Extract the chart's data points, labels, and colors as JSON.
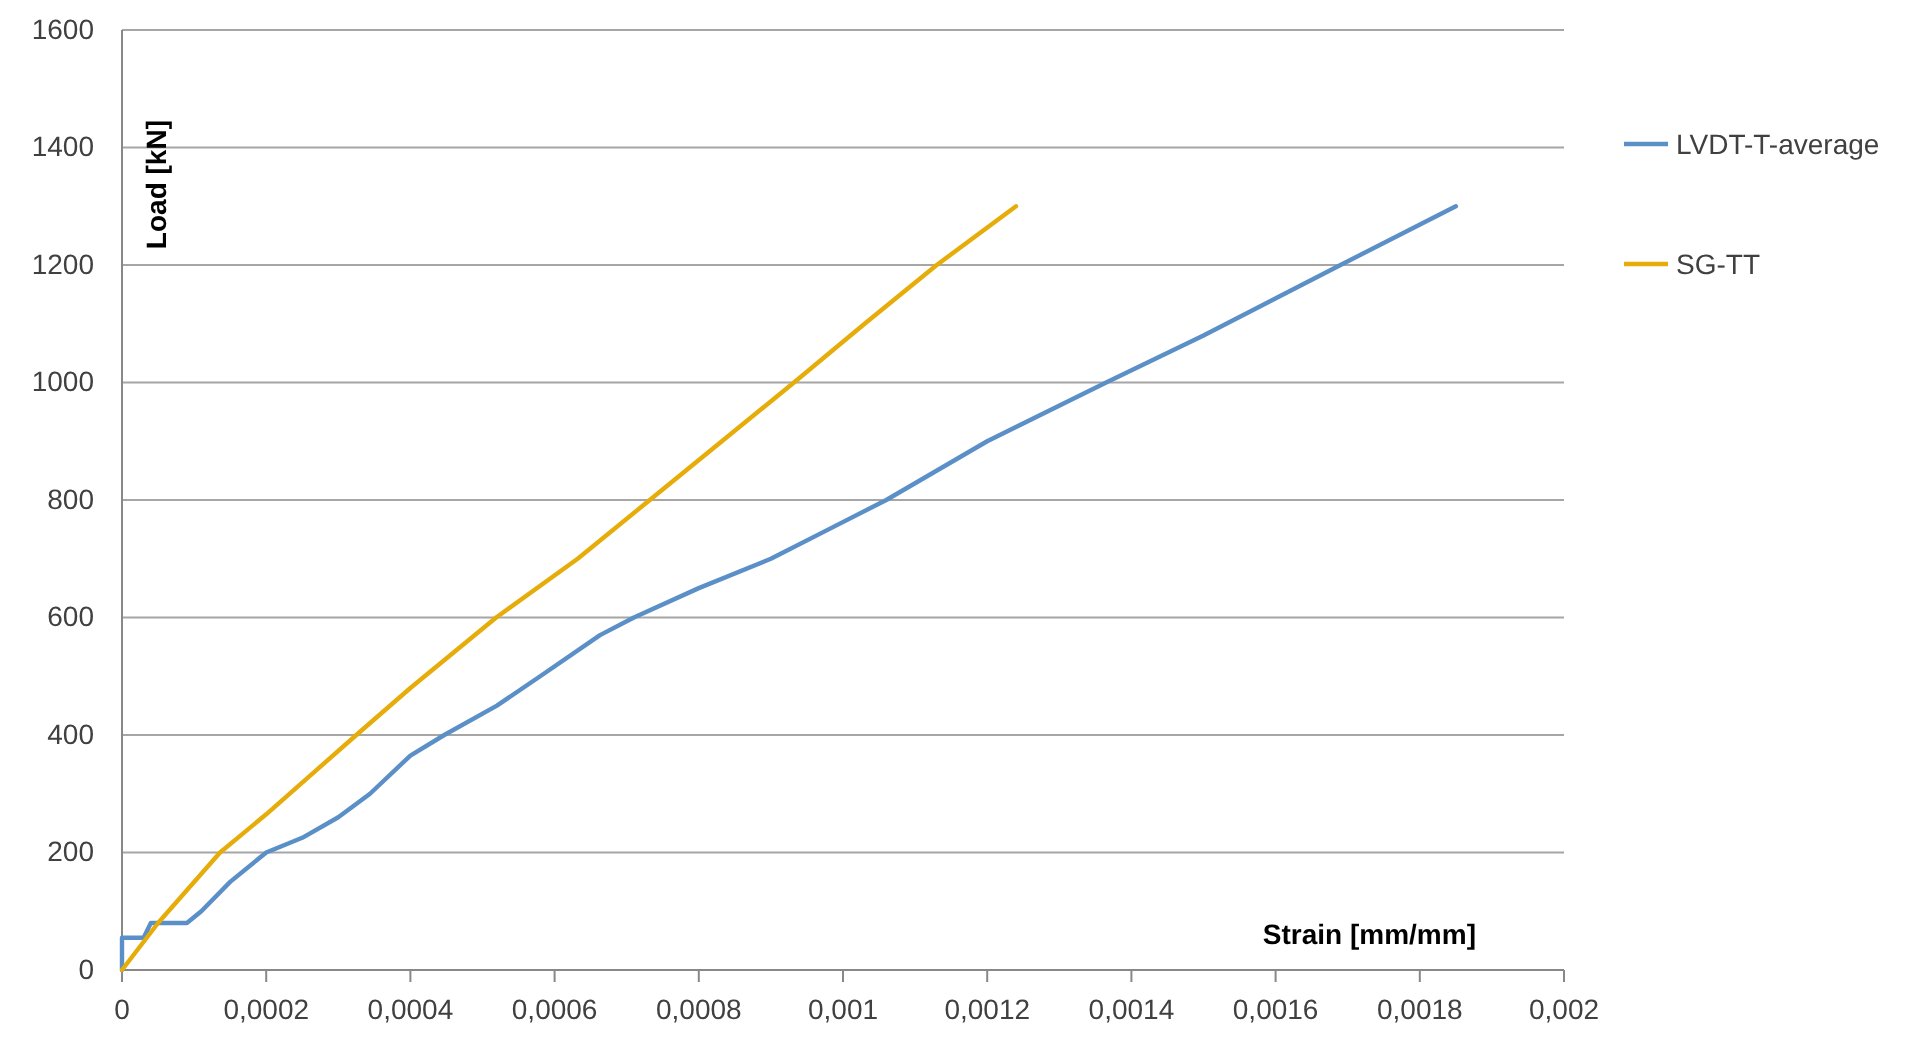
{
  "chart_data": {
    "type": "line",
    "xlabel": "Strain [mm/mm]",
    "ylabel": "Load [kN]",
    "xlim": [
      0,
      0.002
    ],
    "ylim": [
      0,
      1600
    ],
    "xticks": [
      0,
      {
        "value": 0.0002,
        "label": "0,0002"
      },
      {
        "value": 0.0004,
        "label": "0,0004"
      },
      {
        "value": 0.0006,
        "label": "0,0006"
      },
      {
        "value": 0.0008,
        "label": "0,0008"
      },
      {
        "value": 0.001,
        "label": "0,001"
      },
      {
        "value": 0.0012,
        "label": "0,0012"
      },
      {
        "value": 0.0014,
        "label": "0,0014"
      },
      {
        "value": 0.0016,
        "label": "0,0016"
      },
      {
        "value": 0.0018,
        "label": "0,0018"
      },
      {
        "value": 0.002,
        "label": "0,002"
      }
    ],
    "yticks": [
      0,
      200,
      400,
      600,
      800,
      1000,
      1200,
      1400,
      1600
    ],
    "grid": "y",
    "legend": "right",
    "marker": "none",
    "line_style": "solid",
    "series": [
      {
        "name": "LVDT-T-average",
        "color": "#5b8fc7",
        "x": [
          0,
          0,
          3e-05,
          4e-05,
          9e-05,
          0.00011,
          0.00015,
          0.0002,
          0.00025,
          0.0003,
          0.000344,
          0.0004,
          0.000447,
          0.00052,
          0.00058,
          0.000663,
          0.00071,
          0.0008,
          0.0009,
          0.00098,
          0.00106,
          0.0012,
          0.001365,
          0.0015,
          0.00169,
          0.00185
        ],
        "values": [
          0,
          55,
          55,
          80,
          80,
          100,
          150,
          200,
          225,
          260,
          300,
          365,
          400,
          450,
          500,
          570,
          600,
          650,
          700,
          750,
          800,
          900,
          1000,
          1080,
          1200,
          1300
        ]
      },
      {
        "name": "SG-TT",
        "color": "#e6ac0a",
        "x": [
          0,
          5e-05,
          0.000136,
          0.0002,
          0.000325,
          0.0004,
          0.000519,
          0.000632,
          0.000732,
          0.000832,
          0.000932,
          0.00103,
          0.00113,
          0.00124
        ],
        "values": [
          0,
          80,
          200,
          265,
          400,
          480,
          600,
          700,
          800,
          900,
          1000,
          1100,
          1200,
          1300
        ]
      }
    ]
  }
}
